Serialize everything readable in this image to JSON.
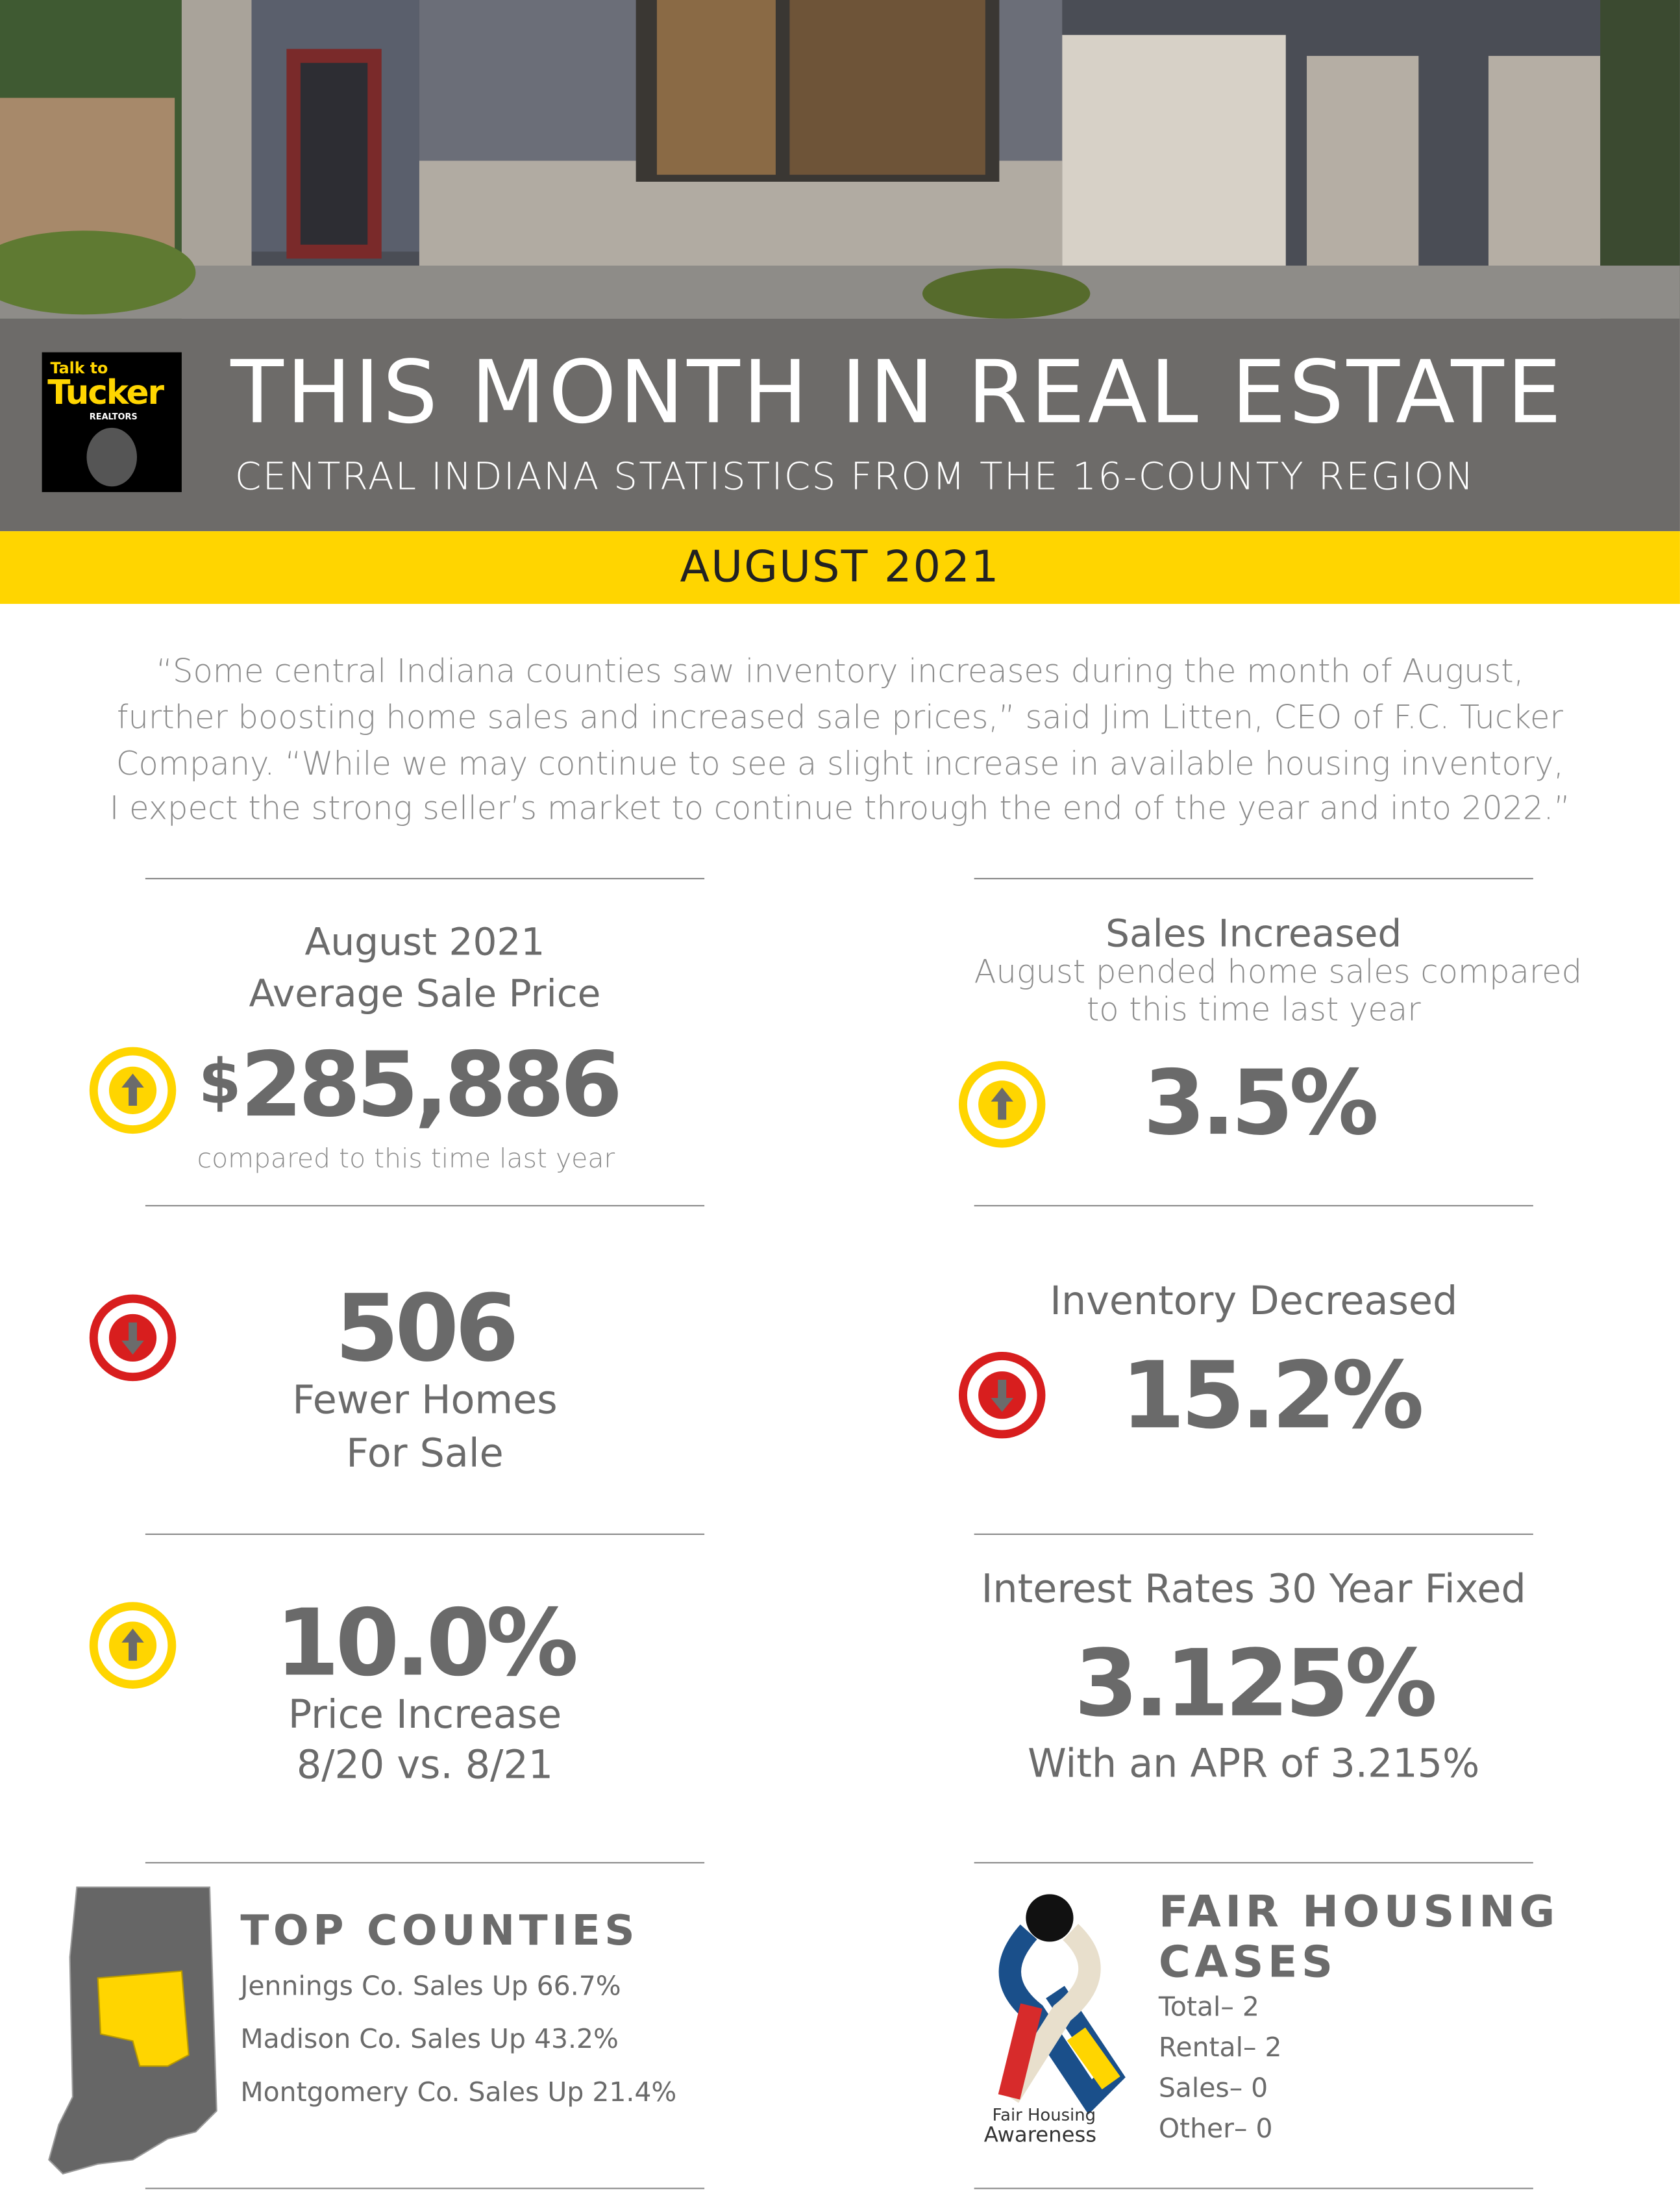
{
  "header": {
    "logo": {
      "line1": "Talk to",
      "line2": "Tucker",
      "line3": "REALTORS"
    },
    "title": "THIS MONTH IN REAL ESTATE",
    "subtitle": "CENTRAL INDIANA STATISTICS FROM THE 16-COUNTY REGION",
    "month": "AUGUST 2021"
  },
  "quote": [
    "“Some central Indiana counties saw inventory increases during the month of August,",
    "further boosting home sales and increased sale prices,” said Jim Litten, CEO of F.C. Tucker",
    "Company. “While we may continue to see a slight increase in available housing inventory,",
    "I expect the strong seller’s market to continue through the end of the year and into 2022.”"
  ],
  "stats": {
    "avg_price": {
      "label_line1": "August 2021",
      "label_line2": "Average Sale Price",
      "currency": "$",
      "amount": "285,886",
      "note": "compared to this time last year"
    },
    "sales": {
      "title": "Sales Increased",
      "note_line1": "August pended home sales compared",
      "note_line2": "to this time last year",
      "value": "3.5%"
    },
    "homes": {
      "value": "506",
      "label_line1": "Fewer Homes",
      "label_line2": "For Sale"
    },
    "inventory": {
      "title": "Inventory Decreased",
      "value": "15.2%"
    },
    "price_increase": {
      "value": "10.0%",
      "label": "Price Increase",
      "period": "8/20 vs. 8/21"
    },
    "rates": {
      "title": "Interest Rates 30 Year Fixed",
      "value": "3.125%",
      "note": "With an APR of 3.215%"
    }
  },
  "top_counties": {
    "title": "TOP COUNTIES",
    "items": [
      "Jennings Co. Sales Up 66.7%",
      "Madison Co. Sales Up 43.2%",
      "Montgomery Co. Sales Up 21.4%"
    ]
  },
  "fair_housing": {
    "title_line1": "FAIR HOUSING",
    "title_line2": "CASES",
    "ribbon_line1": "Fair Housing",
    "ribbon_line2": "Awareness",
    "items": [
      "Total– 2",
      "Rental– 2",
      "Sales– 0",
      "Other– 0"
    ]
  }
}
